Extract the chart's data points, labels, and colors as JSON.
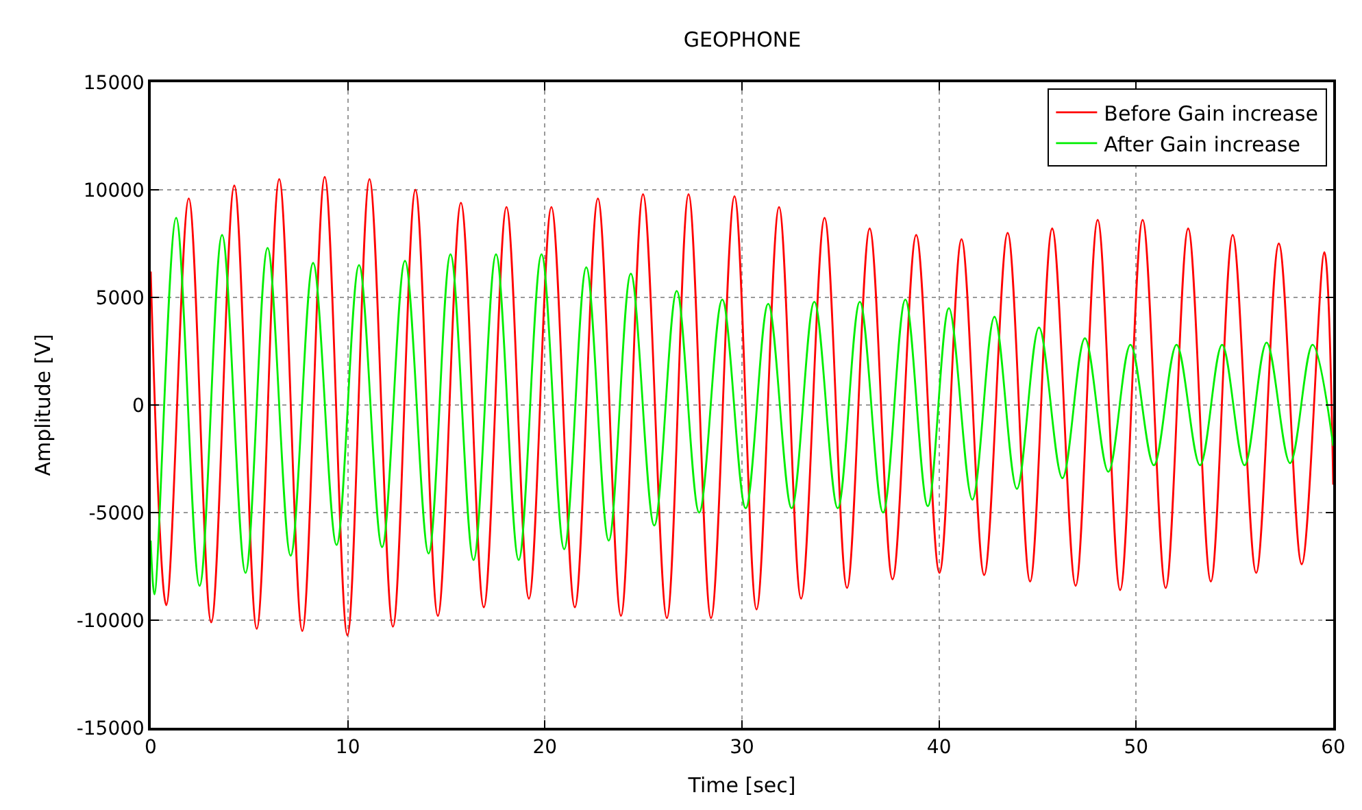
{
  "chart_data": {
    "type": "line",
    "title": "GEOPHONE",
    "xlabel": "Time [sec]",
    "ylabel": "Amplitude [V]",
    "xlim": [
      0,
      60
    ],
    "xticks": [
      0,
      10,
      20,
      30,
      40,
      50,
      60
    ],
    "ylim": [
      -15000,
      15000
    ],
    "yticks": [
      -15000,
      -10000,
      -5000,
      0,
      5000,
      10000,
      15000
    ],
    "grid": true,
    "legend": "top right",
    "line_style": "solid",
    "series": [
      {
        "name": "Before Gain increase",
        "color": "#ff0000",
        "x": [
          0,
          0.79,
          1.93,
          3.07,
          4.24,
          5.38,
          6.52,
          7.69,
          8.83,
          9.98,
          11.1,
          12.29,
          13.43,
          14.57,
          15.74,
          16.9,
          18.05,
          19.19,
          20.33,
          21.52,
          22.69,
          23.86,
          24.98,
          26.19,
          27.29,
          28.43,
          29.62,
          30.74,
          31.88,
          33.0,
          34.19,
          35.33,
          36.48,
          37.64,
          38.84,
          40.02,
          41.14,
          42.29,
          43.48,
          44.62,
          45.74,
          46.93,
          48.05,
          49.19,
          50.33,
          51.5,
          52.64,
          53.79,
          54.9,
          56.09,
          57.24,
          58.4,
          59.55,
          60
        ],
        "values": [
          6200,
          -9300,
          9600,
          -10100,
          10200,
          -10400,
          10500,
          -10500,
          10600,
          -10700,
          10500,
          -10300,
          10000,
          -9800,
          9400,
          -9400,
          9200,
          -9000,
          9200,
          -9400,
          9600,
          -9800,
          9800,
          -9900,
          9800,
          -9900,
          9700,
          -9500,
          9200,
          -9000,
          8700,
          -8500,
          8200,
          -8100,
          7900,
          -7800,
          7700,
          -7900,
          8000,
          -8200,
          8200,
          -8400,
          8600,
          -8600,
          8600,
          -8500,
          8200,
          -8200,
          7900,
          -7800,
          7500,
          -7400,
          7100,
          -3700
        ]
      },
      {
        "name": "After Gain increase",
        "color": "#00ee00",
        "x": [
          0,
          0.19,
          1.29,
          2.48,
          3.62,
          4.81,
          5.93,
          7.1,
          8.24,
          9.43,
          10.57,
          11.74,
          12.9,
          14.1,
          15.21,
          16.38,
          17.52,
          18.67,
          19.83,
          20.98,
          22.1,
          23.24,
          24.36,
          25.55,
          26.69,
          27.83,
          29.0,
          30.19,
          31.33,
          32.52,
          33.67,
          34.86,
          35.98,
          37.16,
          38.29,
          39.43,
          40.5,
          41.69,
          42.81,
          43.95,
          45.07,
          46.26,
          47.4,
          48.59,
          49.71,
          50.9,
          52.05,
          53.24,
          54.36,
          55.5,
          56.62,
          57.81,
          58.95,
          60
        ],
        "values": [
          -6300,
          -8800,
          8700,
          -8400,
          7900,
          -7800,
          7300,
          -7000,
          6600,
          -6500,
          6500,
          -6600,
          6700,
          -6900,
          7000,
          -7200,
          7000,
          -7200,
          7000,
          -6700,
          6400,
          -6300,
          6100,
          -5600,
          5300,
          -5000,
          4900,
          -4800,
          4700,
          -4800,
          4800,
          -4800,
          4800,
          -5000,
          4900,
          -4700,
          4500,
          -4400,
          4100,
          -3900,
          3600,
          -3400,
          3100,
          -3100,
          2800,
          -2800,
          2800,
          -2800,
          2800,
          -2800,
          2900,
          -2700,
          2800,
          -1900
        ]
      }
    ]
  }
}
